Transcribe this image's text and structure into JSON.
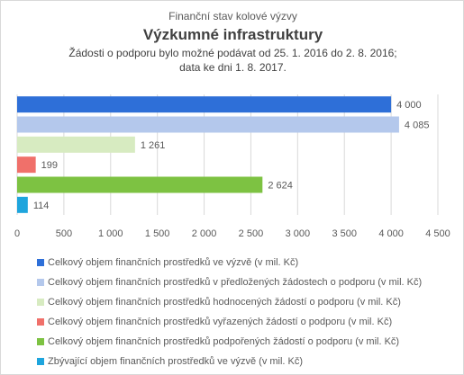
{
  "chart_data": {
    "type": "bar",
    "orientation": "horizontal",
    "title_top": "Finanční stav kolové výzvy",
    "title": "Výzkumné infrastruktury",
    "subtitle_line1": "Žádosti o podporu bylo možné  podávat od 25. 1. 2016 do 2. 8. 2016;",
    "subtitle_line2": "data ke dni 1. 8. 2017.",
    "xlim": [
      0,
      4500
    ],
    "x_ticks": [
      {
        "value": 0,
        "label": "0"
      },
      {
        "value": 500,
        "label": "500"
      },
      {
        "value": 1000,
        "label": "1 000"
      },
      {
        "value": 1500,
        "label": "1 500"
      },
      {
        "value": 2000,
        "label": "2 000"
      },
      {
        "value": 2500,
        "label": "2 500"
      },
      {
        "value": 3000,
        "label": "3 000"
      },
      {
        "value": 3500,
        "label": "3 500"
      },
      {
        "value": 4000,
        "label": "4 000"
      },
      {
        "value": 4500,
        "label": "4 500"
      }
    ],
    "grid": "vertical",
    "legend_position": "bottom",
    "series": [
      {
        "name": "Celkový objem finančních prostředků ve výzvě (v mil. Kč)",
        "value": 4000,
        "label": "4 000",
        "color": "#2e6fd8"
      },
      {
        "name": "Celkový objem finančních prostředků v předložených žádostech o podporu (v mil. Kč)",
        "value": 4085,
        "label": "4 085",
        "color": "#b4c8ec"
      },
      {
        "name": "Celkový objem finančních prostředků hodnocených žádostí o podporu (v mil. Kč)",
        "value": 1261,
        "label": "1 261",
        "color": "#d7ebc1"
      },
      {
        "name": "Celkový objem finančních prostředků vyřazených žádostí o podporu (v mil. Kč)",
        "value": 199,
        "label": "199",
        "color": "#f0706a"
      },
      {
        "name": "Celkový objem finančních prostředků podpořených žádostí o podporu (v mil. Kč)",
        "value": 2624,
        "label": "2 624",
        "color": "#7dc242"
      },
      {
        "name": "Zbývající objem finančních prostředků ve výzvě (v mil. Kč)",
        "value": 114,
        "label": "114",
        "color": "#1ea5dd"
      }
    ]
  }
}
